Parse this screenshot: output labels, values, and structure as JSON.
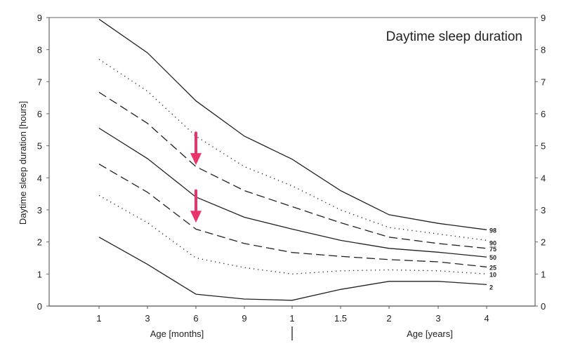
{
  "chart_data": {
    "type": "line",
    "title": "Daytime sleep duration",
    "ylabel": "Daytime sleep duration [hours]",
    "xlabel_months": "Age [months]",
    "xlabel_years": "Age [years]",
    "categories": [
      "1",
      "3",
      "6",
      "9",
      "1",
      "1.5",
      "2",
      "3",
      "4"
    ],
    "ylim": [
      0,
      9
    ],
    "yticks": [
      0,
      1,
      2,
      3,
      4,
      5,
      6,
      7,
      8,
      9
    ],
    "grid": false,
    "legend": "inline labels at right end of each line",
    "series": [
      {
        "name": "98",
        "style": "solid",
        "values": [
          8.95,
          7.9,
          6.4,
          5.3,
          4.58,
          3.6,
          2.85,
          2.58,
          2.38
        ]
      },
      {
        "name": "90",
        "style": "dotted",
        "values": [
          7.7,
          6.7,
          5.3,
          4.35,
          3.75,
          3.0,
          2.45,
          2.25,
          2.05
        ]
      },
      {
        "name": "75",
        "style": "dashed",
        "values": [
          6.67,
          5.7,
          4.35,
          3.6,
          3.1,
          2.6,
          2.15,
          1.95,
          1.8
        ]
      },
      {
        "name": "50",
        "style": "solid",
        "values": [
          5.55,
          4.6,
          3.4,
          2.77,
          2.4,
          2.05,
          1.8,
          1.68,
          1.53
        ]
      },
      {
        "name": "25",
        "style": "dashed",
        "values": [
          4.43,
          3.55,
          2.4,
          1.95,
          1.67,
          1.55,
          1.45,
          1.38,
          1.22
        ]
      },
      {
        "name": "10",
        "style": "dotted",
        "values": [
          3.45,
          2.6,
          1.5,
          1.2,
          1.0,
          1.1,
          1.13,
          1.1,
          1.0
        ]
      },
      {
        "name": "2",
        "style": "solid",
        "values": [
          2.15,
          1.3,
          0.37,
          0.22,
          0.18,
          0.52,
          0.77,
          0.77,
          0.67
        ]
      }
    ],
    "annotations": [
      {
        "type": "arrow",
        "category": "6",
        "from": 5.4,
        "to": 4.4,
        "color": "#e8346a"
      },
      {
        "type": "arrow",
        "category": "6",
        "from": 3.6,
        "to": 2.6,
        "color": "#e8346a"
      }
    ]
  }
}
